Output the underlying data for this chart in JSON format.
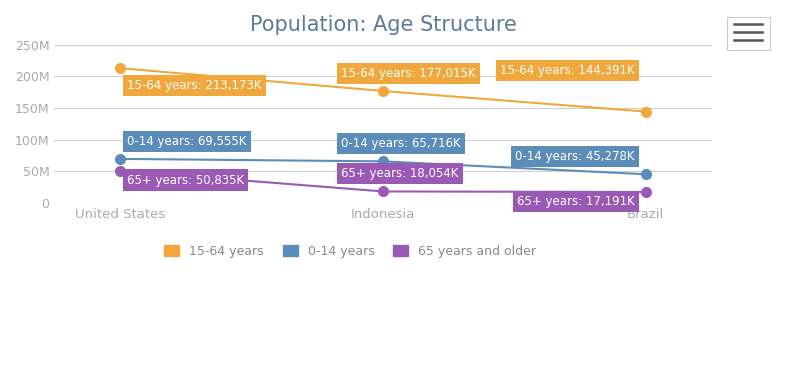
{
  "title": "Population: Age Structure",
  "title_color": "#5c7a9a",
  "background_color": "#ffffff",
  "plot_bg_color": "#ffffff",
  "grid_color": "#d0d0d0",
  "categories": [
    "United States",
    "Indonesia",
    "Brazil"
  ],
  "series": [
    {
      "name": "15-64 years",
      "color": "#f0a83c",
      "values": [
        213173,
        177015,
        144391
      ],
      "marker_size": 7,
      "labels": [
        "15-64 years: 213,173K",
        "15-64 years: 177,015K",
        "15-64 years: 144,391K"
      ]
    },
    {
      "name": "0-14 years",
      "color": "#5b8db8",
      "values": [
        69555,
        65716,
        45278
      ],
      "marker_size": 7,
      "labels": [
        "0-14 years: 69,555K",
        "0-14 years: 65,716K",
        "0-14 years: 45,278K"
      ]
    },
    {
      "name": "65 years and older",
      "color": "#9b59b6",
      "values": [
        50835,
        18054,
        17191
      ],
      "marker_size": 7,
      "labels": [
        "65+ years: 50,835K",
        "65+ years: 18,054K",
        "65+ years: 17,191K"
      ]
    }
  ],
  "ylim": [
    0,
    250000
  ],
  "yticks": [
    0,
    50000,
    100000,
    150000,
    200000,
    250000
  ],
  "ytick_labels": [
    "0",
    "50M",
    "100M",
    "150M",
    "200M",
    "250M"
  ],
  "tick_color": "#aaaaaa",
  "legend_colors": [
    "#f0a83c",
    "#5b8db8",
    "#9b59b6"
  ],
  "legend_names": [
    "15-64 years",
    "0-14 years",
    "65 years and older"
  ],
  "label_text_color": "#ffffff",
  "label_font_size": 8.5
}
